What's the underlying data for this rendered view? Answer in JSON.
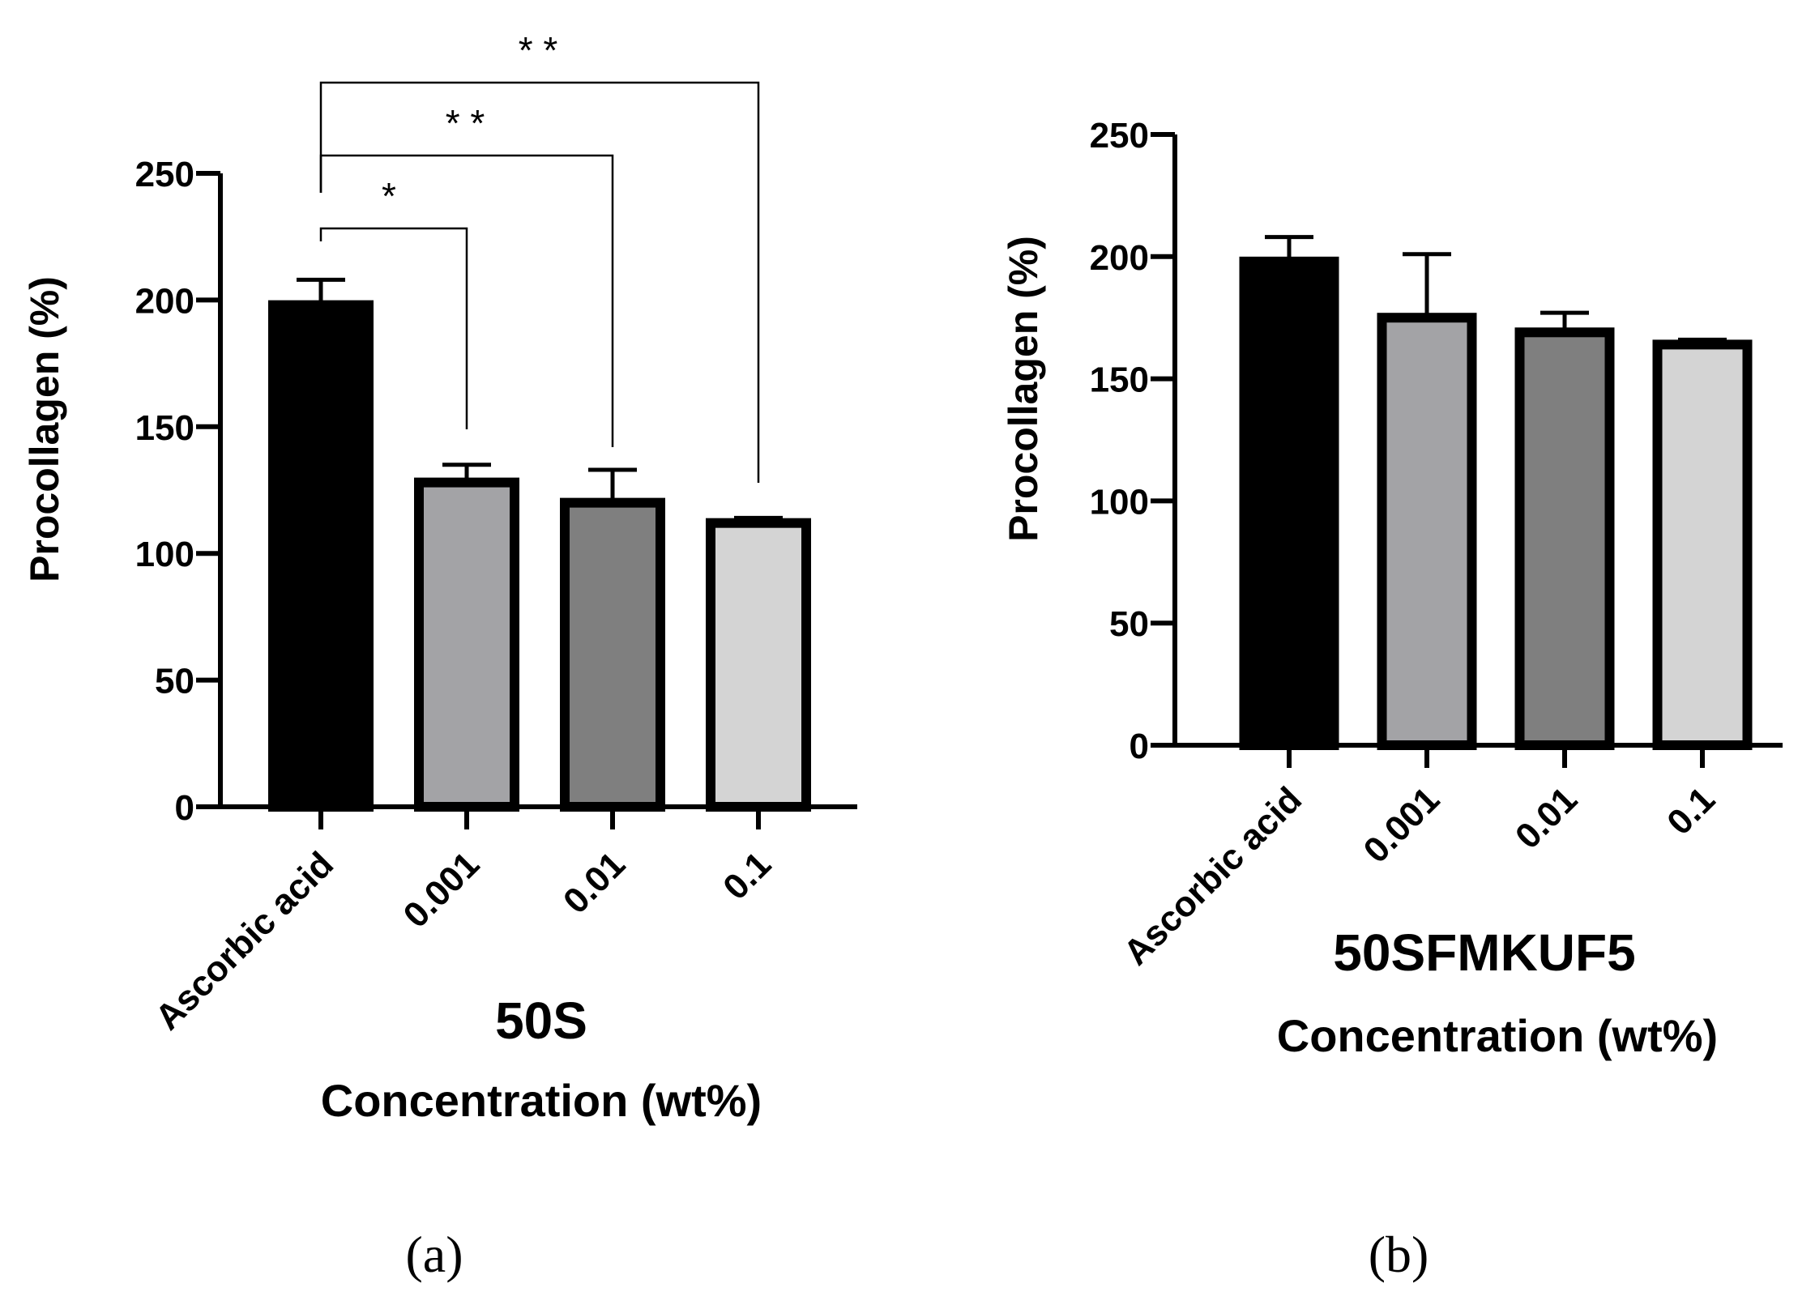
{
  "chart_data": [
    {
      "type": "bar",
      "panel": "(a)",
      "title": "50S",
      "xlabel": "Concentration (wt%)",
      "ylabel": "Procollagen (%)",
      "ylim": [
        0,
        250
      ],
      "yticks": [
        0,
        50,
        100,
        150,
        200,
        250
      ],
      "categories": [
        "Ascorbic acid",
        "0.001",
        "0.01",
        "0.1"
      ],
      "values": [
        198,
        128,
        120,
        112
      ],
      "errors": [
        10,
        7,
        13,
        2
      ],
      "colors": [
        "#000000",
        "#a3a3a6",
        "#7f7f7f",
        "#d4d4d4"
      ],
      "significance": [
        {
          "from": 0,
          "to": 1,
          "label": "*",
          "level": 1
        },
        {
          "from": 0,
          "to": 2,
          "label": "* *",
          "level": 2
        },
        {
          "from": 0,
          "to": 3,
          "label": "* *",
          "level": 3
        }
      ]
    },
    {
      "type": "bar",
      "panel": "(b)",
      "title": "50SFMKUF5",
      "xlabel": "Concentration (wt%)",
      "ylabel": "Procollagen (%)",
      "ylim": [
        0,
        250
      ],
      "yticks": [
        0,
        50,
        100,
        150,
        200,
        250
      ],
      "categories": [
        "Ascorbic acid",
        "0.001",
        "0.01",
        "0.1"
      ],
      "values": [
        198,
        175,
        169,
        164
      ],
      "errors": [
        10,
        26,
        8,
        2
      ],
      "colors": [
        "#000000",
        "#a3a3a6",
        "#7f7f7f",
        "#d4d4d4"
      ],
      "significance": []
    }
  ]
}
